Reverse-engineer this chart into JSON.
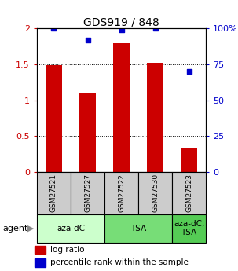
{
  "title": "GDS919 / 848",
  "samples": [
    "GSM27521",
    "GSM27527",
    "GSM27522",
    "GSM27530",
    "GSM27523"
  ],
  "log_ratio": [
    1.49,
    1.1,
    1.8,
    1.52,
    0.33
  ],
  "percentile_rank": [
    100,
    92,
    99,
    100,
    70
  ],
  "ylim_left": [
    0,
    2
  ],
  "ylim_right": [
    0,
    100
  ],
  "yticks_left": [
    0,
    0.5,
    1.0,
    1.5,
    2.0
  ],
  "ytick_labels_left": [
    "0",
    "0.5",
    "1",
    "1.5",
    "2"
  ],
  "yticks_right": [
    0,
    25,
    50,
    75,
    100
  ],
  "ytick_labels_right": [
    "0",
    "25",
    "50",
    "75",
    "100%"
  ],
  "bar_color": "#cc0000",
  "dot_color": "#0000cc",
  "groups": [
    {
      "label": "aza-dC",
      "count": 2,
      "color": "#ccffcc"
    },
    {
      "label": "TSA",
      "count": 2,
      "color": "#77dd77"
    },
    {
      "label": "aza-dC,\nTSA",
      "count": 1,
      "color": "#55cc55"
    }
  ],
  "agent_label": "agent",
  "legend_bar_label": "log ratio",
  "legend_dot_label": "percentile rank within the sample",
  "sample_box_color": "#cccccc",
  "bar_width": 0.5,
  "background_color": "#ffffff"
}
